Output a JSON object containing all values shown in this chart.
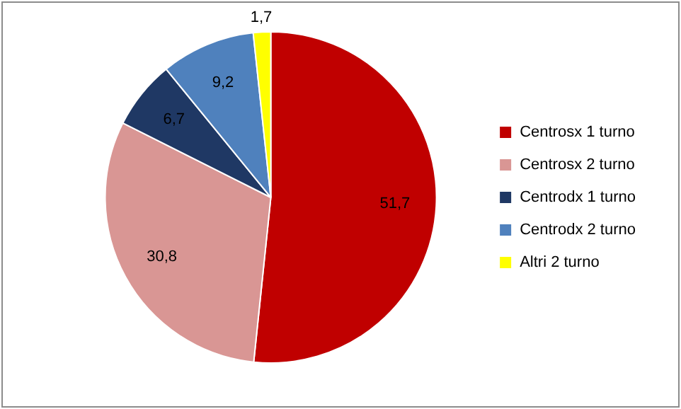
{
  "chart_data": {
    "type": "pie",
    "categories": [
      "Centrosx 1 turno",
      "Centrosx 2 turno",
      "Centrodx 1 turno",
      "Centrodx 2 turno",
      "Altri 2 turno"
    ],
    "values": [
      51.7,
      30.8,
      6.7,
      9.2,
      1.7
    ],
    "value_labels": [
      "51,7",
      "30,8",
      "6,7",
      "9,2",
      "1,7"
    ],
    "colors": [
      "#c00000",
      "#d99694",
      "#1f3864",
      "#4f81bd",
      "#ffff00"
    ],
    "legend": "right"
  }
}
